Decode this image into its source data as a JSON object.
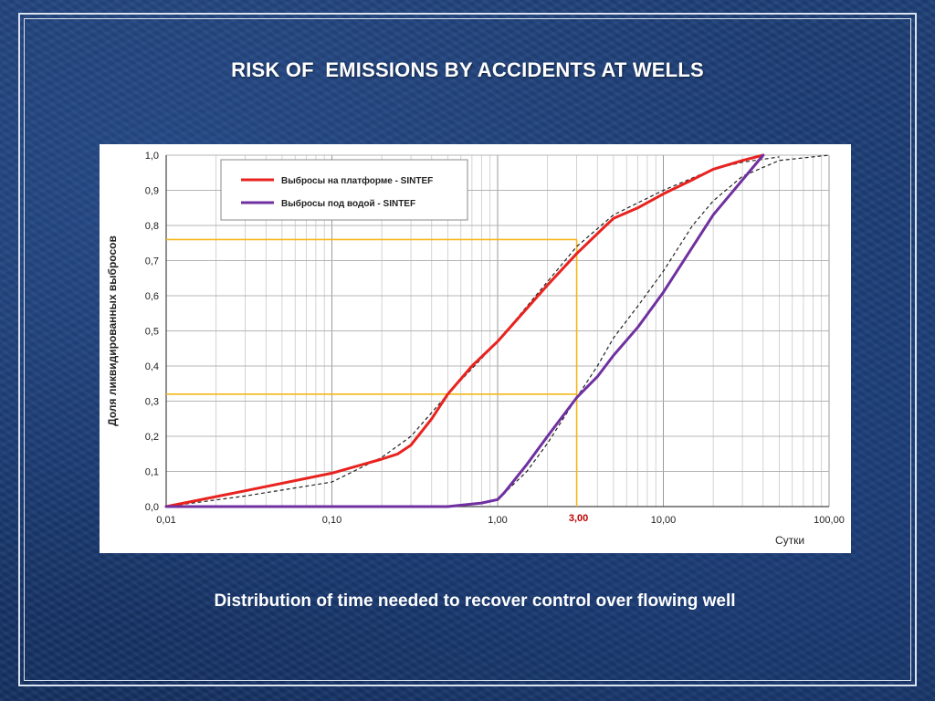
{
  "slide": {
    "title": "RISK OF  EMISSIONS BY ACCIDENTS AT WELLS",
    "caption": "Distribution of time needed to recover control over flowing well"
  },
  "chart_data": {
    "type": "line",
    "xscale": "log",
    "xlim": [
      0.01,
      100
    ],
    "ylim": [
      0,
      1
    ],
    "xlabel": "Сутки",
    "ylabel": "Доля ликвидированных  выбросов",
    "xticks": [
      "0,01",
      "0,10",
      "1,00",
      "10,00",
      "100,00"
    ],
    "yticks": [
      "0,0",
      "0,1",
      "0,2",
      "0,3",
      "0,4",
      "0,5",
      "0,6",
      "0,7",
      "0,8",
      "0,9",
      "1,0"
    ],
    "grid": true,
    "legend_position": "top-left",
    "colors": {
      "platform": "#e8231f",
      "underwater": "#7030a0",
      "fit": "#222222",
      "marker": "#f2b718",
      "highlight_tick": "#c00000"
    },
    "series": [
      {
        "name": "Выбросы на платформе - SINTEF",
        "color": "#e8231f",
        "x": [
          0.01,
          0.03,
          0.1,
          0.2,
          0.25,
          0.3,
          0.4,
          0.5,
          0.7,
          1.0,
          2.0,
          3.0,
          4.5,
          5.0,
          7.0,
          10.0,
          15.0,
          20.0,
          30.0,
          40.0
        ],
        "y": [
          0.0,
          0.045,
          0.095,
          0.135,
          0.15,
          0.175,
          0.25,
          0.32,
          0.4,
          0.47,
          0.63,
          0.72,
          0.8,
          0.82,
          0.85,
          0.89,
          0.93,
          0.96,
          0.985,
          1.0
        ]
      },
      {
        "name": "Выбросы под водой - SINTEF",
        "color": "#7030a0",
        "x": [
          0.01,
          0.5,
          0.8,
          1.0,
          1.1,
          1.5,
          2.0,
          3.0,
          4.0,
          5.0,
          7.0,
          10.0,
          20.0,
          40.0
        ],
        "y": [
          0.0,
          0.0,
          0.01,
          0.02,
          0.04,
          0.12,
          0.2,
          0.31,
          0.37,
          0.43,
          0.51,
          0.61,
          0.83,
          1.0
        ]
      },
      {
        "name": "fit-platform",
        "dashed": true,
        "x": [
          0.01,
          0.03,
          0.1,
          0.2,
          0.3,
          0.5,
          1.0,
          2.0,
          3.0,
          5.0,
          10.0,
          20.0,
          30.0,
          50.0
        ],
        "y": [
          0.0,
          0.03,
          0.07,
          0.14,
          0.2,
          0.32,
          0.47,
          0.64,
          0.74,
          0.83,
          0.9,
          0.96,
          0.98,
          0.995
        ]
      },
      {
        "name": "fit-underwater",
        "dashed": true,
        "x": [
          0.5,
          0.7,
          1.0,
          1.5,
          2.0,
          3.0,
          4.0,
          5.0,
          7.0,
          10.0,
          15.0,
          20.0,
          30.0,
          50.0,
          100.0
        ],
        "y": [
          0.0,
          0.005,
          0.02,
          0.1,
          0.18,
          0.31,
          0.4,
          0.48,
          0.57,
          0.67,
          0.8,
          0.87,
          0.94,
          0.985,
          1.0
        ]
      }
    ],
    "markers": {
      "x_value": 3.0,
      "x_label": "3,00",
      "y_levels": [
        0.32,
        0.76
      ]
    }
  }
}
